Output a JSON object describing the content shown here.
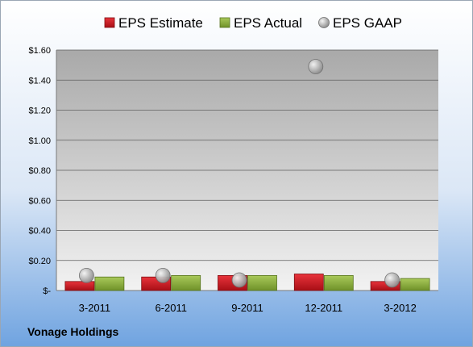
{
  "company": "Vonage Holdings",
  "chart_data": {
    "type": "bar",
    "categories": [
      "3-2011",
      "6-2011",
      "9-2011",
      "12-2011",
      "3-2012"
    ],
    "series": [
      {
        "name": "EPS Estimate",
        "kind": "bar",
        "color": "#c8161d",
        "values": [
          0.06,
          0.09,
          0.1,
          0.11,
          0.06
        ]
      },
      {
        "name": "EPS Actual",
        "kind": "bar",
        "color": "#8fb13e",
        "values": [
          0.09,
          0.1,
          0.1,
          0.1,
          0.08
        ]
      },
      {
        "name": "EPS GAAP",
        "kind": "scatter",
        "color": "#9a9a9a",
        "values": [
          0.1,
          0.1,
          0.07,
          1.49,
          0.07
        ]
      }
    ],
    "ylim": [
      0,
      1.6
    ],
    "yticks": [
      0,
      0.2,
      0.4,
      0.6,
      0.8,
      1.0,
      1.2,
      1.4,
      1.6
    ],
    "ytick_labels": [
      "$-",
      "$0.20",
      "$0.40",
      "$0.60",
      "$0.80",
      "$1.00",
      "$1.20",
      "$1.40",
      "$1.60"
    ],
    "grid": true,
    "legend_position": "top"
  }
}
